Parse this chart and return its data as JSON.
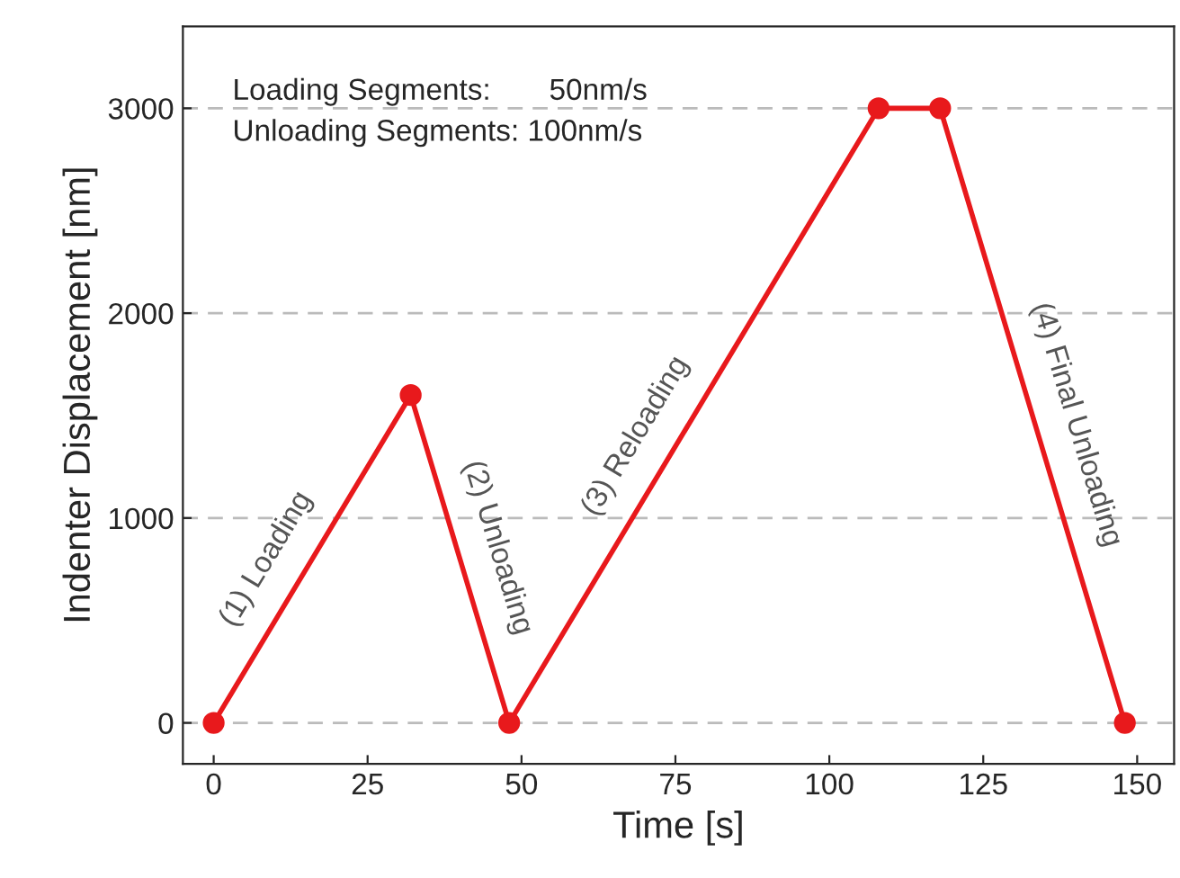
{
  "chart_data": {
    "type": "line",
    "xlabel": "Time [s]",
    "ylabel": "Indenter Displacement [nm]",
    "x": [
      0,
      32,
      48,
      108,
      118,
      148
    ],
    "series": [
      {
        "color": "#e8191c",
        "values": [
          0,
          1600,
          0,
          3000,
          3000,
          0
        ]
      }
    ],
    "xlim": [
      -5,
      156
    ],
    "ylim": [
      -200,
      3400
    ],
    "xticks": [
      0,
      25,
      50,
      75,
      100,
      125,
      150
    ],
    "yticks": [
      0,
      1000,
      2000,
      3000
    ],
    "grid": "y",
    "marker": "circle",
    "line_style": "solid",
    "annotations": [
      "Loading Segments:       50nm/s\nUnloading Segments: 100nm/s",
      {
        "text": "(1) Loading",
        "x": 14,
        "y": 700
      },
      {
        "text": "(2) Unloading",
        "x": 40,
        "y": 800
      },
      {
        "text": "(3) Reloading",
        "x": 74,
        "y": 1300
      },
      {
        "text": "(4) Final Unloading",
        "x": 134,
        "y": 1400
      }
    ]
  }
}
